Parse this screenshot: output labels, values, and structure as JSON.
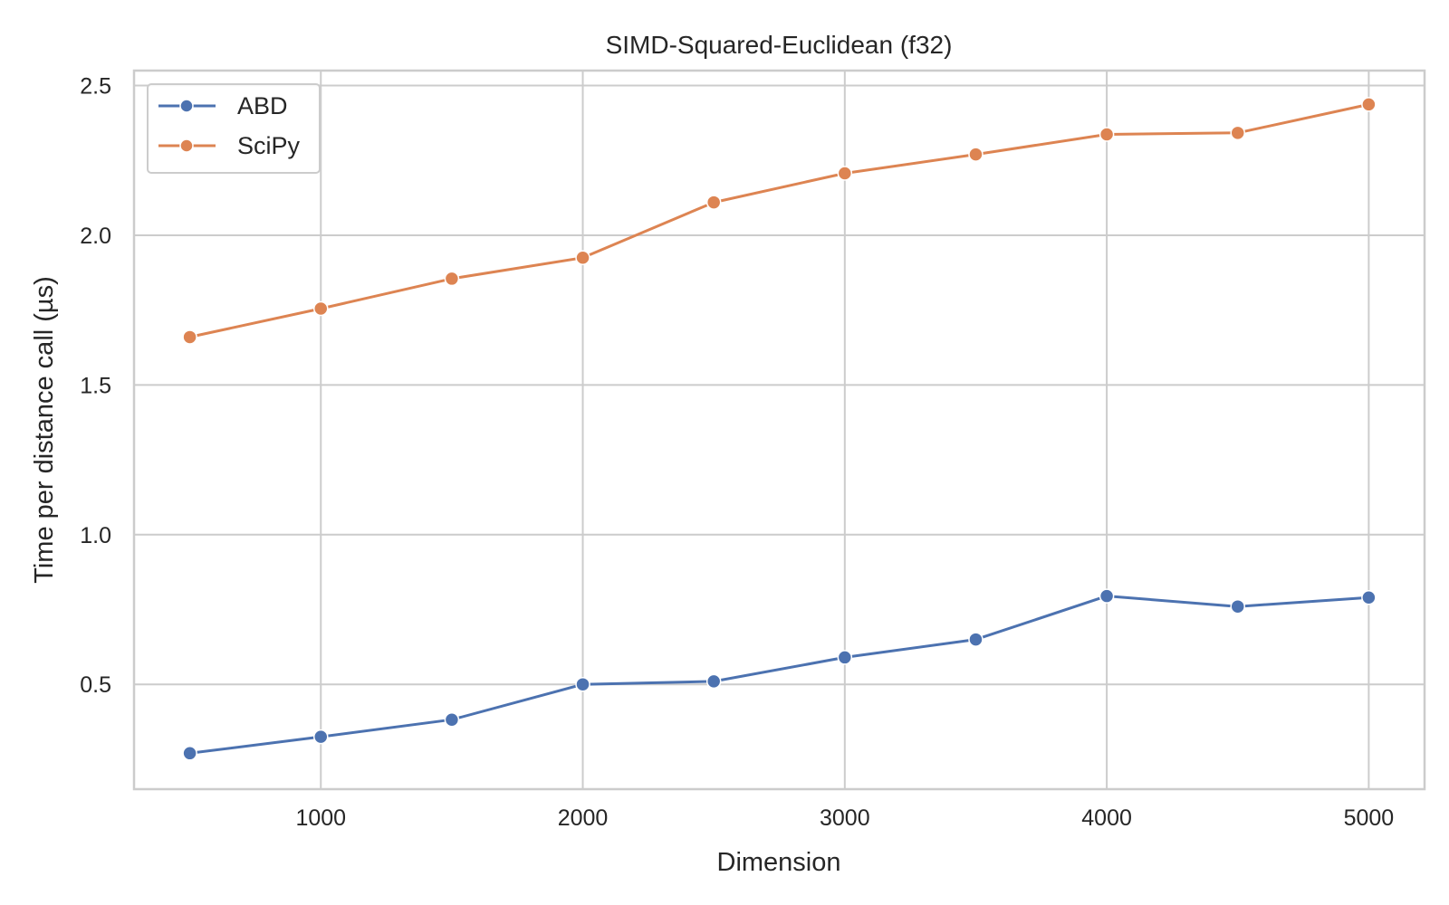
{
  "chart_data": {
    "type": "line",
    "title": "SIMD-Squared-Euclidean (f32)",
    "xlabel": "Dimension",
    "ylabel": "Time per distance call (µs)",
    "x": [
      500,
      1000,
      1500,
      2000,
      2500,
      3000,
      3500,
      4000,
      4500,
      5000
    ],
    "xlim": [
      287,
      5213
    ],
    "ylim": [
      0.15,
      2.55
    ],
    "xticks": [
      1000,
      2000,
      3000,
      4000,
      5000
    ],
    "yticks": [
      0.5,
      1.0,
      1.5,
      2.0,
      2.5
    ],
    "xtick_labels": [
      "1000",
      "2000",
      "3000",
      "4000",
      "5000"
    ],
    "ytick_labels": [
      "0.5",
      "1.0",
      "1.5",
      "2.0",
      "2.5"
    ],
    "grid": true,
    "legend_position": "top-left",
    "series": [
      {
        "name": "ABD",
        "color": "#4c72b0",
        "marker": "circle",
        "values": [
          0.27,
          0.325,
          0.382,
          0.5,
          0.51,
          0.59,
          0.65,
          0.795,
          0.76,
          0.79
        ]
      },
      {
        "name": "SciPy",
        "color": "#dd8452",
        "marker": "circle",
        "values": [
          1.66,
          1.755,
          1.855,
          1.925,
          2.11,
          2.207,
          2.27,
          2.337,
          2.342,
          2.437
        ]
      }
    ]
  }
}
